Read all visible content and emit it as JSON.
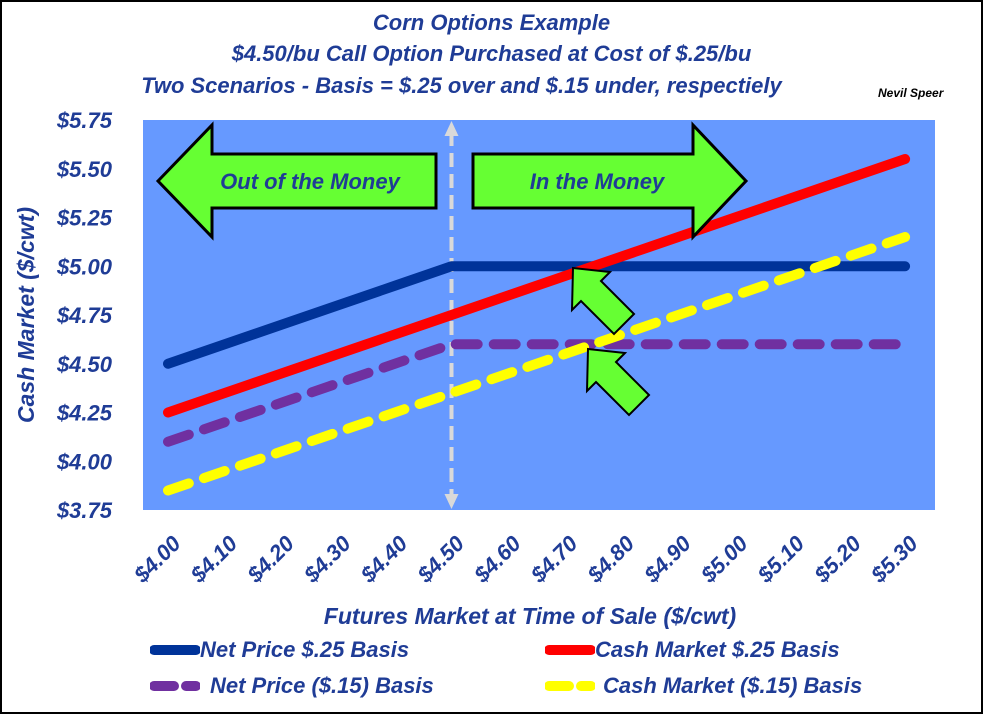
{
  "titles": {
    "line1": "Corn Options Example",
    "line2": "$4.50/bu Call Option Purchased at Cost of $.25/bu",
    "line3": "Two Scenarios - Basis = $.25 over and $.15 under, respectiely",
    "author": "Nevil Speer"
  },
  "annotations": {
    "left_arrow": "Out of the Money",
    "right_arrow": "In the Money"
  },
  "colors": {
    "plot_bg": "#6699ff",
    "text": "#1f3c96",
    "arrow_fill": "#66ff33",
    "strike_line": "#d9d9d9"
  },
  "chart_data": {
    "type": "line",
    "title": "Corn Options Example",
    "xlabel": "Futures Market at Time of Sale ($/cwt)",
    "ylabel": "Cash Market ($/cwt)",
    "ylim": [
      3.75,
      5.75
    ],
    "y_ticks": [
      "$3.75",
      "$4.00",
      "$4.25",
      "$4.50",
      "$4.75",
      "$5.00",
      "$5.25",
      "$5.50",
      "$5.75"
    ],
    "y_tick_values": [
      3.75,
      4.0,
      4.25,
      4.5,
      4.75,
      5.0,
      5.25,
      5.5,
      5.75
    ],
    "categories": [
      "$4.00",
      "$4.10",
      "$4.20",
      "$4.30",
      "$4.40",
      "$4.50",
      "$4.60",
      "$4.70",
      "$4.80",
      "$4.90",
      "$5.00",
      "$5.10",
      "$5.20",
      "$5.30"
    ],
    "x": [
      4.0,
      4.1,
      4.2,
      4.3,
      4.4,
      4.5,
      4.6,
      4.7,
      4.8,
      4.9,
      5.0,
      5.1,
      5.2,
      5.3
    ],
    "strike": 4.5,
    "grid": false,
    "legend_position": "bottom",
    "series": [
      {
        "name": "Net Price $.25 Basis",
        "color": "#003399",
        "dash": false,
        "values": [
          4.5,
          4.6,
          4.7,
          4.8,
          4.9,
          5.0,
          5.0,
          5.0,
          5.0,
          5.0,
          5.0,
          5.0,
          5.0,
          5.0
        ]
      },
      {
        "name": "Cash Market $.25 Basis",
        "color": "#ff0000",
        "dash": false,
        "values": [
          4.25,
          4.35,
          4.45,
          4.55,
          4.65,
          4.75,
          4.85,
          4.95,
          5.05,
          5.15,
          5.25,
          5.35,
          5.45,
          5.55
        ]
      },
      {
        "name": "Net Price ($.15) Basis",
        "color": "#7030a0",
        "dash": true,
        "values": [
          4.1,
          4.2,
          4.3,
          4.4,
          4.5,
          4.6,
          4.6,
          4.6,
          4.6,
          4.6,
          4.6,
          4.6,
          4.6,
          4.6
        ]
      },
      {
        "name": "Cash Market ($.15) Basis",
        "color": "#ffff00",
        "dash": true,
        "values": [
          3.85,
          3.95,
          4.05,
          4.15,
          4.25,
          4.35,
          4.45,
          4.55,
          4.65,
          4.75,
          4.85,
          4.95,
          5.05,
          5.15
        ]
      }
    ]
  }
}
